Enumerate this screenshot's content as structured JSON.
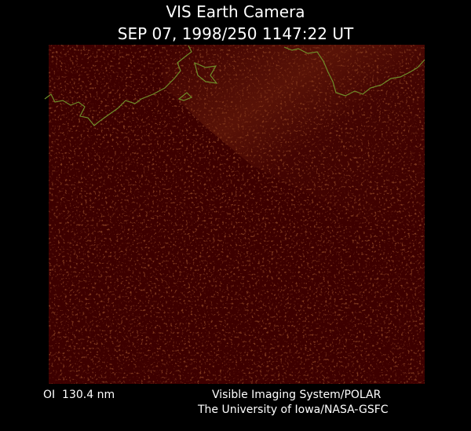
{
  "header": {
    "title": "VIS Earth Camera",
    "timestamp": "SEP 07, 1998/250 1147:22 UT"
  },
  "footer": {
    "band": "OI  130.4 nm",
    "instrument": "Visible Imaging System/POLAR",
    "credit": "The University of Iowa/NASA-GSFC"
  }
}
